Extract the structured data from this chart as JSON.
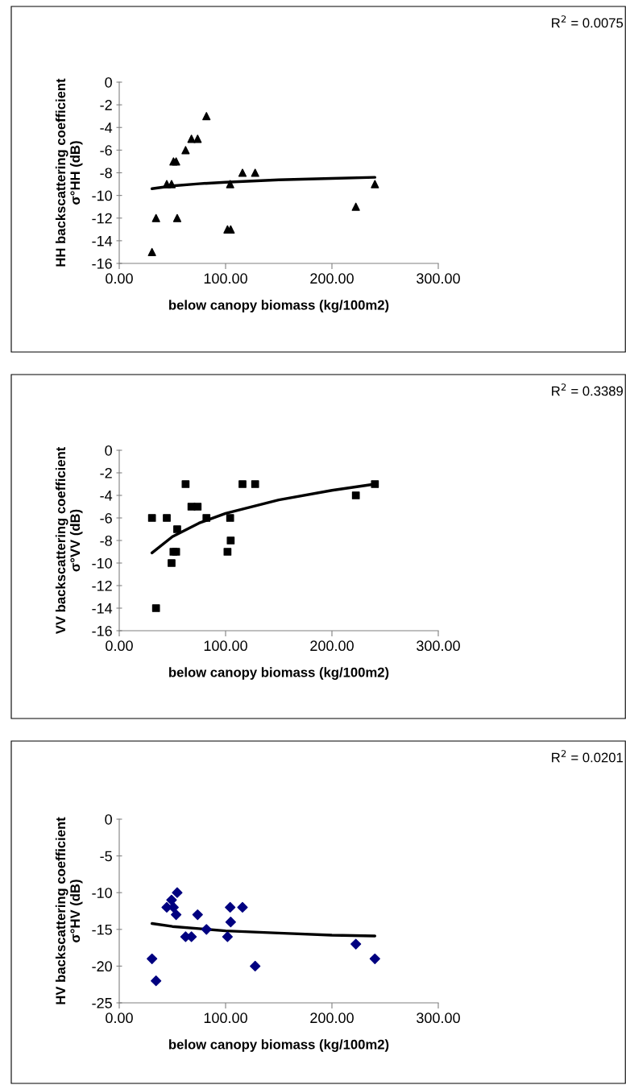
{
  "chart_data": [
    {
      "type": "scatter",
      "xlabel": "below canopy biomass (kg/100m2)",
      "ylabel": "HH backscattering coefficient\nσ°HH (dB)",
      "xlim": [
        0,
        300
      ],
      "xticks": [
        {
          "value": 0,
          "label": "0.00"
        },
        {
          "value": 100,
          "label": "100.00"
        },
        {
          "value": 200,
          "label": "200.00"
        },
        {
          "value": 300,
          "label": "300.00"
        }
      ],
      "ylim": [
        -16,
        0
      ],
      "yticks": [
        -16,
        -14,
        -12,
        -10,
        -8,
        -6,
        -4,
        -2,
        0
      ],
      "grid": false,
      "legend": false,
      "annotations": [
        "R$^{2}$ = 0.0075"
      ],
      "series": [
        {
          "color": "#000000",
          "marker": "triangle",
          "x": [
            30.8,
            34.6,
            44.7,
            49.2,
            51,
            53.5,
            54.5,
            62.4,
            67.9,
            73.7,
            82,
            101.8,
            104.3,
            104.8,
            115.9,
            127.8,
            222.5,
            240.4
          ],
          "values": [
            -15,
            -12,
            -9,
            -9,
            -7,
            -7,
            -12,
            -6,
            -5,
            -5,
            -3,
            -13,
            -9,
            -13,
            -8,
            -8,
            -11,
            -9
          ]
        },
        {
          "type": "line",
          "color": "#000000",
          "marker": "none",
          "line_style": "solid",
          "x": [
            30.8,
            50,
            75,
            100,
            150,
            200,
            240.4
          ],
          "values": [
            -9.4,
            -9.16,
            -8.97,
            -8.83,
            -8.63,
            -8.49,
            -8.4
          ]
        }
      ]
    },
    {
      "type": "scatter",
      "xlabel": "below canopy biomass (kg/100m2)",
      "ylabel": "VV backscattering coefficient\nσ°VV (dB)",
      "xlim": [
        0,
        300
      ],
      "xticks": [
        {
          "value": 0,
          "label": "0.00"
        },
        {
          "value": 100,
          "label": "100.00"
        },
        {
          "value": 200,
          "label": "200.00"
        },
        {
          "value": 300,
          "label": "300.00"
        }
      ],
      "ylim": [
        -16,
        0
      ],
      "yticks": [
        -16,
        -14,
        -12,
        -10,
        -8,
        -6,
        -4,
        -2,
        0
      ],
      "grid": false,
      "legend": false,
      "annotations": [
        "R$^{2}$ = 0.3389"
      ],
      "series": [
        {
          "color": "#000000",
          "marker": "square",
          "x": [
            30.8,
            34.6,
            44.7,
            49.2,
            51,
            53.5,
            54.5,
            62.4,
            67.9,
            73.7,
            82,
            101.8,
            104.3,
            104.8,
            115.9,
            127.8,
            222.5,
            240.4
          ],
          "values": [
            -6,
            -14,
            -6,
            -10,
            -9,
            -9,
            -7,
            -3,
            -5,
            -5,
            -6,
            -9,
            -6,
            -8,
            -3,
            -3,
            -4,
            -3
          ]
        },
        {
          "type": "line",
          "color": "#000000",
          "marker": "none",
          "line_style": "solid",
          "x": [
            30.8,
            50,
            75,
            100,
            150,
            200,
            240.4
          ],
          "values": [
            -9.1,
            -7.66,
            -6.46,
            -5.6,
            -4.4,
            -3.55,
            -3.0
          ]
        }
      ]
    },
    {
      "type": "scatter",
      "xlabel": "below canopy biomass (kg/100m2)",
      "ylabel": "HV backscattering coefficient\nσ°HV (dB)",
      "xlim": [
        0,
        300
      ],
      "xticks": [
        {
          "value": 0,
          "label": "0.00"
        },
        {
          "value": 100,
          "label": "100.00"
        },
        {
          "value": 200,
          "label": "200.00"
        },
        {
          "value": 300,
          "label": "300.00"
        }
      ],
      "ylim": [
        -25,
        0
      ],
      "yticks": [
        -25,
        -20,
        -15,
        -10,
        -5,
        0
      ],
      "grid": false,
      "legend": false,
      "annotations": [
        "R$^{2}$ = 0.0201"
      ],
      "series": [
        {
          "color": "#000080",
          "marker": "diamond",
          "x": [
            30.8,
            34.6,
            44.7,
            49.2,
            51,
            53.5,
            54.5,
            62.4,
            67.9,
            73.7,
            82,
            101.8,
            104.3,
            104.8,
            115.9,
            127.8,
            222.5,
            240.4
          ],
          "values": [
            -19,
            -22,
            -12,
            -11,
            -12,
            -13,
            -10,
            -16,
            -16,
            -13,
            -15,
            -16,
            -12,
            -14,
            -12,
            -20,
            -17,
            -19
          ]
        },
        {
          "type": "line",
          "color": "#000000",
          "marker": "none",
          "line_style": "solid",
          "x": [
            30.8,
            50,
            75,
            100,
            150,
            200,
            240.4
          ],
          "values": [
            -14.2,
            -14.6,
            -14.9,
            -15.2,
            -15.5,
            -15.8,
            -15.9
          ]
        }
      ]
    }
  ]
}
